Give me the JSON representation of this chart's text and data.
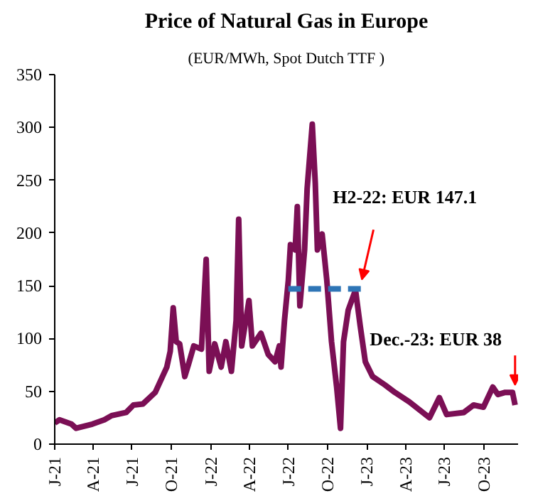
{
  "chart_data": {
    "type": "line",
    "title": "Price of Natural Gas in Europe",
    "subtitle": "(EUR/MWh, Spot Dutch TTF )",
    "series": [
      {
        "color": "#7b0f55",
        "line_style": "solid",
        "x": [
          "2021-01-01",
          "2021-01-12",
          "2021-02-09",
          "2021-02-20",
          "2021-03-30",
          "2021-04-27",
          "2021-05-14",
          "2021-06-17",
          "2021-07-04",
          "2021-07-26",
          "2021-08-24",
          "2021-09-20",
          "2021-09-28",
          "2021-10-05",
          "2021-10-12",
          "2021-10-20",
          "2021-11-01",
          "2021-11-10",
          "2021-11-22",
          "2021-12-10",
          "2021-12-21",
          "2021-12-28",
          "2022-01-10",
          "2022-01-25",
          "2022-02-05",
          "2022-02-18",
          "2022-03-01",
          "2022-03-07",
          "2022-03-14",
          "2022-03-31",
          "2022-04-08",
          "2022-04-28",
          "2022-05-15",
          "2022-05-31",
          "2022-06-10",
          "2022-06-14",
          "2022-06-22",
          "2022-07-01",
          "2022-07-06",
          "2022-07-17",
          "2022-07-22",
          "2022-07-28",
          "2022-08-08",
          "2022-08-14",
          "2022-08-26",
          "2022-09-02",
          "2022-09-07",
          "2022-09-18",
          "2022-09-29",
          "2022-10-10",
          "2022-10-22",
          "2022-10-31",
          "2022-11-07",
          "2022-11-18",
          "2022-12-05",
          "2022-12-16",
          "2022-12-28",
          "2023-01-14",
          "2023-02-12",
          "2023-03-07",
          "2023-04-10",
          "2023-05-27",
          "2023-06-19",
          "2023-07-06",
          "2023-08-15",
          "2023-09-07",
          "2023-09-30",
          "2023-10-22",
          "2023-11-03",
          "2023-11-20",
          "2023-12-07",
          "2023-12-13"
        ],
        "values": [
          20,
          23,
          19,
          15,
          19,
          23,
          27,
          30,
          37,
          38,
          49,
          73,
          88,
          129,
          97,
          95,
          64,
          76,
          93,
          90,
          175,
          69,
          95,
          73,
          97,
          69,
          117,
          213,
          93,
          136,
          93,
          105,
          85,
          78,
          93,
          73,
          117,
          155,
          189,
          184,
          225,
          131,
          184,
          242,
          303,
          247,
          184,
          199,
          155,
          97,
          54,
          15,
          97,
          127,
          146,
          112,
          78,
          64,
          56,
          49,
          40,
          25,
          44,
          28,
          30,
          37,
          35,
          54,
          47,
          49,
          49,
          37
        ]
      },
      {
        "color": "#2e75b6",
        "line_style": "dashed",
        "x": [
          "2022-07-01",
          "2022-12-20"
        ],
        "values": [
          147.1,
          147.1
        ]
      }
    ],
    "xlim": [
      "2021-01-01",
      "2023-12-20"
    ],
    "xticks": [
      {
        "value": "2021-01-01",
        "label": "J-21"
      },
      {
        "value": "2021-04-01",
        "label": "A-21"
      },
      {
        "value": "2021-07-01",
        "label": "J-21"
      },
      {
        "value": "2021-10-01",
        "label": "O-21"
      },
      {
        "value": "2022-01-01",
        "label": "J-22"
      },
      {
        "value": "2022-04-01",
        "label": "A-22"
      },
      {
        "value": "2022-07-01",
        "label": "J-22"
      },
      {
        "value": "2022-10-01",
        "label": "O-22"
      },
      {
        "value": "2023-01-01",
        "label": "J-23"
      },
      {
        "value": "2023-04-01",
        "label": "A-23"
      },
      {
        "value": "2023-07-01",
        "label": "J-23"
      },
      {
        "value": "2023-10-01",
        "label": "O-23"
      }
    ],
    "ylim": [
      0,
      350
    ],
    "yticks": [
      0,
      50,
      100,
      150,
      200,
      250,
      300,
      350
    ],
    "grid": false,
    "annotations": [
      {
        "text": "H2-22: EUR  147.1",
        "x": "2022-12-20",
        "y": 147.1
      },
      {
        "text": "Dec.-23: EUR  38",
        "x": "2023-12-13",
        "y": 49
      }
    ]
  }
}
